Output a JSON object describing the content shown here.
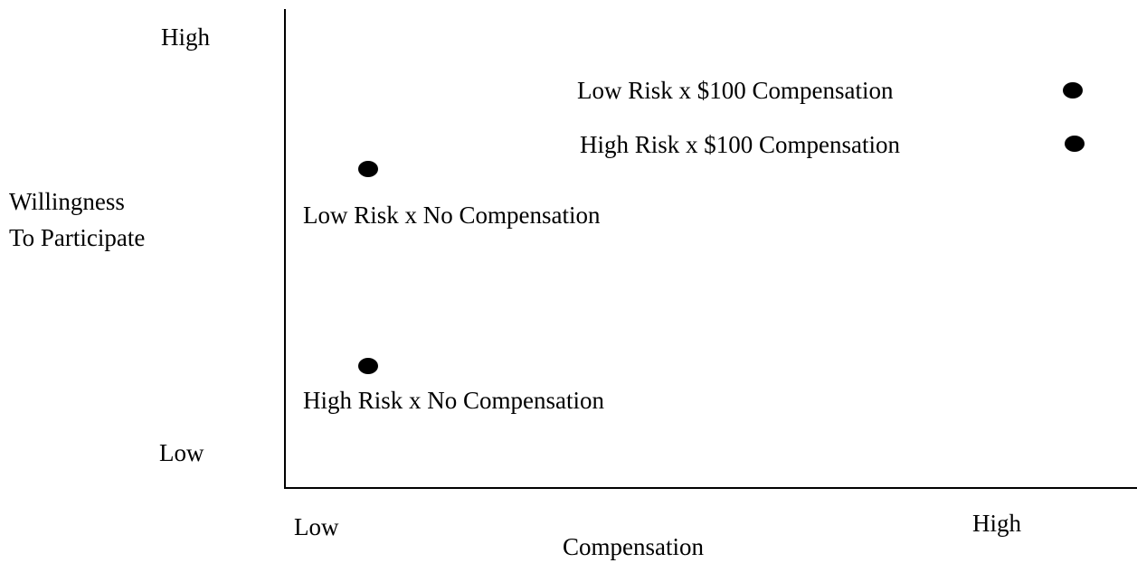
{
  "y_axis": {
    "label": [
      "Willingness",
      "To Participate"
    ],
    "high": "High",
    "low": "Low"
  },
  "x_axis": {
    "label": "Compensation",
    "low": "Low",
    "high": "High"
  },
  "points": [
    {
      "label": "Low Risk x $100 Compensation"
    },
    {
      "label": "High Risk x $100 Compensation"
    },
    {
      "label": "Low Risk x No Compensation"
    },
    {
      "label": "High Risk x No Compensation"
    }
  ]
}
